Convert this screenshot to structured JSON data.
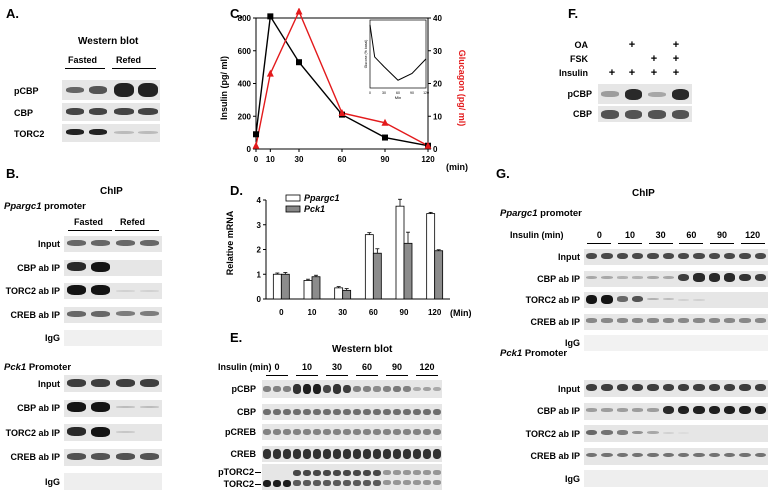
{
  "panelA": {
    "letter": "A.",
    "title": "Western blot",
    "groups": [
      "Fasted",
      "Refed"
    ],
    "rows": [
      "pCBP",
      "CBP",
      "TORC2"
    ]
  },
  "panelB": {
    "letter": "B.",
    "title": "ChIP",
    "promoter1": "Ppargc1 promoter",
    "promoter1_gene": "Ppargc1",
    "promoter1_suffix": " promoter",
    "groups": [
      "Fasted",
      "Refed"
    ],
    "rows1": [
      "Input",
      "CBP ab IP",
      "TORC2 ab IP",
      "CREB ab IP",
      "IgG"
    ],
    "promoter2_gene": "Pck1",
    "promoter2_suffix": " Promoter",
    "rows2": [
      "Input",
      "CBP ab IP",
      "TORC2 ab IP",
      "CREB ab IP",
      "IgG"
    ]
  },
  "panelC": {
    "letter": "C.",
    "y_left_label": "Insulin (pg/ ml)",
    "y_right_label": "Glucagon (pg/ ml)",
    "x_unit": "(min)",
    "inset_ylabel": "Glucose (% basal)",
    "inset_xlabel": "Min",
    "colors": {
      "insulin": "#000000",
      "glucagon": "#e31a1c"
    }
  },
  "panelD": {
    "letter": "D.",
    "ylabel": "Relative mRNA",
    "x_unit": "(Min)",
    "legend": [
      "Ppargc1",
      "Pck1"
    ]
  },
  "panelE": {
    "letter": "E.",
    "title": "Western blot",
    "insulin_label": "Insulin (min)",
    "timepoints": [
      "0",
      "10",
      "30",
      "60",
      "90",
      "120"
    ],
    "rows": [
      "pCBP",
      "CBP",
      "pCREB",
      "CREB",
      "pTORC2",
      "TORC2"
    ]
  },
  "panelF": {
    "letter": "F.",
    "treatments": [
      "OA",
      "FSK",
      "Insulin"
    ],
    "signs": [
      [
        "",
        "+",
        "",
        "+"
      ],
      [
        "",
        "",
        "+",
        "+"
      ],
      [
        "+",
        "+",
        "+",
        "+"
      ]
    ],
    "rows": [
      "pCBP",
      "CBP"
    ]
  },
  "panelG": {
    "letter": "G.",
    "title": "ChIP",
    "promoter1_gene": "Ppargc1",
    "promoter1_suffix": " promoter",
    "insulin_label": "Insulin (min)",
    "timepoints": [
      "0",
      "10",
      "30",
      "60",
      "90",
      "120"
    ],
    "rows1": [
      "Input",
      "CBP ab IP",
      "TORC2 ab IP",
      "CREB ab IP",
      "IgG"
    ],
    "promoter2_gene": "Pck1",
    "promoter2_suffix": " Promoter",
    "rows2": [
      "Input",
      "CBP ab IP",
      "TORC2 ab IP",
      "CREB ab IP",
      "IgG"
    ]
  },
  "chart_data": [
    {
      "type": "line",
      "panel": "C",
      "x": [
        0,
        10,
        30,
        60,
        90,
        120
      ],
      "xticks": [
        0,
        10,
        30,
        60,
        90,
        120
      ],
      "ylim_left": [
        0,
        800
      ],
      "yticks_left": [
        0,
        200,
        400,
        600,
        800
      ],
      "ylim_right": [
        0,
        40
      ],
      "yticks_right": [
        0,
        10,
        20,
        30,
        40
      ],
      "series": [
        {
          "name": "Insulin",
          "axis": "left",
          "values": [
            90,
            810,
            530,
            210,
            70,
            20
          ]
        },
        {
          "name": "Glucagon",
          "axis": "right",
          "values": [
            1,
            23,
            42,
            11,
            8,
            1
          ]
        }
      ]
    },
    {
      "type": "line",
      "panel": "C-inset",
      "x": [
        0,
        10,
        30,
        60,
        90,
        120
      ],
      "xticks": [
        0,
        30,
        60,
        90,
        120
      ],
      "ylim": [
        40,
        110
      ],
      "series": [
        {
          "values": [
            105,
            72,
            62,
            48,
            55,
            70
          ]
        }
      ]
    },
    {
      "type": "bar",
      "panel": "D",
      "categories": [
        "0",
        "10",
        "30",
        "60",
        "90",
        "120"
      ],
      "ylim": [
        0,
        4
      ],
      "yticks": [
        0,
        1,
        2,
        3,
        4
      ],
      "series": [
        {
          "name": "Ppargc1",
          "values": [
            1.0,
            0.75,
            0.45,
            2.6,
            3.75,
            3.45
          ],
          "errors": [
            0.05,
            0.05,
            0.05,
            0.08,
            0.28,
            0.05
          ]
        },
        {
          "name": "Pck1",
          "values": [
            1.0,
            0.9,
            0.35,
            1.85,
            2.25,
            1.95
          ],
          "errors": [
            0.07,
            0.06,
            0.07,
            0.18,
            0.45,
            0.04
          ]
        }
      ]
    }
  ]
}
